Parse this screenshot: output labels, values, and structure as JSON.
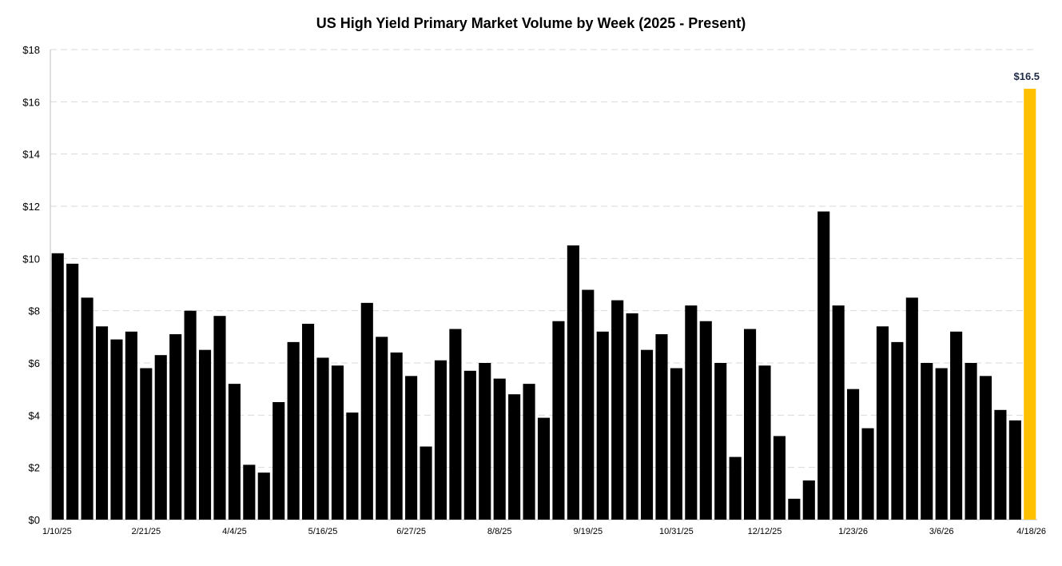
{
  "chart_data": {
    "type": "bar",
    "title": "US High Yield Primary Market Volume by Week (2025 - Present)",
    "xlabel": "",
    "ylabel": "",
    "ylim": [
      0,
      18
    ],
    "y_ticks": [
      0,
      2,
      4,
      6,
      8,
      10,
      12,
      14,
      16,
      18
    ],
    "y_tick_labels": [
      "$0",
      "$2",
      "$4",
      "$6",
      "$8",
      "$10",
      "$12",
      "$14",
      "$16",
      "$18"
    ],
    "grid": true,
    "x_tick_labels": [
      {
        "index": 0,
        "label": "1/10/25"
      },
      {
        "index": 6,
        "label": "2/21/25"
      },
      {
        "index": 12,
        "label": "4/4/25"
      },
      {
        "index": 18,
        "label": "5/16/25"
      },
      {
        "index": 24,
        "label": "6/27/25"
      },
      {
        "index": 30,
        "label": "8/8/25"
      },
      {
        "index": 36,
        "label": "9/19/25"
      },
      {
        "index": 42,
        "label": "10/31/25"
      },
      {
        "index": 48,
        "label": "12/12/25"
      },
      {
        "index": 54,
        "label": "1/23/26"
      },
      {
        "index": 60,
        "label": "3/6/26"
      },
      {
        "index": 66,
        "label": "4/18/26"
      }
    ],
    "values": [
      10.2,
      9.8,
      8.5,
      7.4,
      6.9,
      7.2,
      5.8,
      6.3,
      7.1,
      8.0,
      6.5,
      7.8,
      5.2,
      2.1,
      1.8,
      4.5,
      6.8,
      7.5,
      6.2,
      5.9,
      4.1,
      8.3,
      7.0,
      6.4,
      5.5,
      2.8,
      6.1,
      7.3,
      5.7,
      6.0,
      5.4,
      4.8,
      5.2,
      3.9,
      7.6,
      10.5,
      8.8,
      7.2,
      8.4,
      7.9,
      6.5,
      7.1,
      5.8,
      8.2,
      7.6,
      6.0,
      2.4,
      7.3,
      5.9,
      3.2,
      0.8,
      1.5,
      11.8,
      8.2,
      5.0,
      3.5,
      7.4,
      6.8,
      8.5,
      6.0,
      5.8,
      7.2,
      6.0,
      5.5,
      4.2,
      3.8,
      16.5
    ],
    "highlight_index": 66,
    "highlight_label": "$16.5",
    "colors": {
      "bar": "#000000",
      "highlight": "#FFC000",
      "highlight_label": "#1F2A44",
      "grid": "#D9D9D9",
      "axis": "#BFBFBF"
    }
  }
}
